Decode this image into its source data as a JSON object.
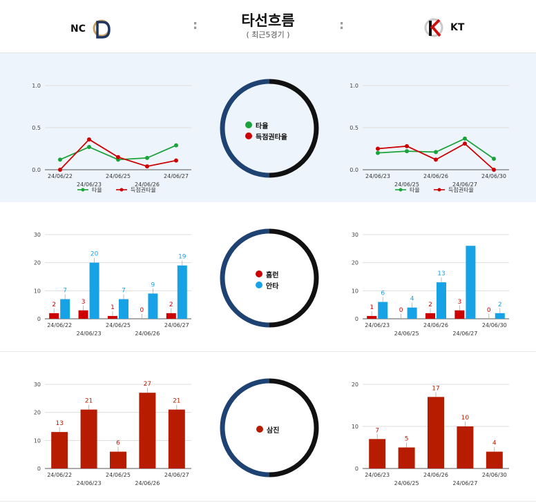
{
  "header": {
    "title": "타선흐름",
    "subtitle": "( 최근5경기 )",
    "separator": ":",
    "home_team": "NC",
    "away_team": "KT"
  },
  "colors": {
    "green": "#1aa33b",
    "red": "#cc0000",
    "blue": "#17a2e6",
    "darkred": "#b71c00",
    "navy": "#1e4272",
    "black": "#111111"
  },
  "rings": {
    "batting": [
      "타율",
      "득점권타율"
    ],
    "hits": [
      "홈런",
      "안타"
    ],
    "strikeouts": [
      "삼진"
    ]
  },
  "chart_data": [
    {
      "id": "nc-avg",
      "type": "line",
      "categories": [
        "24/06/22",
        "24/06/23",
        "24/06/25",
        "24/06/26",
        "24/06/27"
      ],
      "series": [
        {
          "name": "타율",
          "values": [
            0.12,
            0.27,
            0.12,
            0.14,
            0.29
          ]
        },
        {
          "name": "득점권타율",
          "values": [
            0.0,
            0.36,
            0.15,
            0.04,
            0.11
          ]
        }
      ],
      "ylim": [
        0,
        1.0
      ],
      "yticks": [
        "0.0",
        "0.5",
        "1.0"
      ],
      "legend": "bottom"
    },
    {
      "id": "kt-avg",
      "type": "line",
      "categories": [
        "24/06/23",
        "24/06/25",
        "24/06/26",
        "24/06/27",
        "24/06/30"
      ],
      "series": [
        {
          "name": "타율",
          "values": [
            0.2,
            0.22,
            0.21,
            0.37,
            0.13
          ]
        },
        {
          "name": "득점권타율",
          "values": [
            0.25,
            0.28,
            0.12,
            0.31,
            0.0
          ]
        }
      ],
      "ylim": [
        0,
        1.0
      ],
      "yticks": [
        "0.0",
        "0.5",
        "1.0"
      ],
      "legend": "bottom"
    },
    {
      "id": "nc-hits",
      "type": "bar",
      "categories": [
        "24/06/22",
        "24/06/23",
        "24/06/25",
        "24/06/26",
        "24/06/27"
      ],
      "series": [
        {
          "name": "홈런",
          "values": [
            2,
            3,
            1,
            0,
            2
          ]
        },
        {
          "name": "안타",
          "values": [
            7,
            20,
            7,
            9,
            19
          ]
        }
      ],
      "ylim": [
        0,
        30
      ],
      "yticks": [
        "0",
        "10",
        "20",
        "30"
      ],
      "data_labels": [
        [
          "2",
          "3",
          "1",
          "0",
          "2"
        ],
        [
          "7",
          "20",
          "7",
          "9",
          "19"
        ]
      ]
    },
    {
      "id": "kt-hits",
      "type": "bar",
      "categories": [
        "24/06/23",
        "24/06/25",
        "24/06/26",
        "24/06/27",
        "24/06/30"
      ],
      "series": [
        {
          "name": "홈런",
          "values": [
            1,
            0,
            2,
            3,
            0
          ]
        },
        {
          "name": "안타",
          "values": [
            6,
            4,
            13,
            26,
            2
          ]
        }
      ],
      "ylim": [
        0,
        30
      ],
      "yticks": [
        "0",
        "10",
        "20",
        "30"
      ],
      "data_labels": [
        [
          "1",
          "0",
          "2",
          "3",
          "0"
        ],
        [
          "6",
          "4",
          "13",
          "",
          "2"
        ]
      ]
    },
    {
      "id": "nc-so",
      "type": "bar",
      "categories": [
        "24/06/22",
        "24/06/23",
        "24/06/25",
        "24/06/26",
        "24/06/27"
      ],
      "series": [
        {
          "name": "삼진",
          "values": [
            13,
            21,
            6,
            27,
            21
          ]
        }
      ],
      "ylim": [
        0,
        30
      ],
      "yticks": [
        "0",
        "10",
        "20",
        "30"
      ],
      "data_labels": [
        [
          "13",
          "21",
          "6",
          "27",
          "21"
        ]
      ]
    },
    {
      "id": "kt-so",
      "type": "bar",
      "categories": [
        "24/06/23",
        "24/06/25",
        "24/06/26",
        "24/06/27",
        "24/06/30"
      ],
      "series": [
        {
          "name": "삼진",
          "values": [
            7,
            5,
            17,
            10,
            4
          ]
        }
      ],
      "ylim": [
        0,
        20
      ],
      "yticks": [
        "0",
        "10",
        "20"
      ],
      "data_labels": [
        [
          "7",
          "5",
          "17",
          "10",
          "4"
        ]
      ]
    }
  ]
}
